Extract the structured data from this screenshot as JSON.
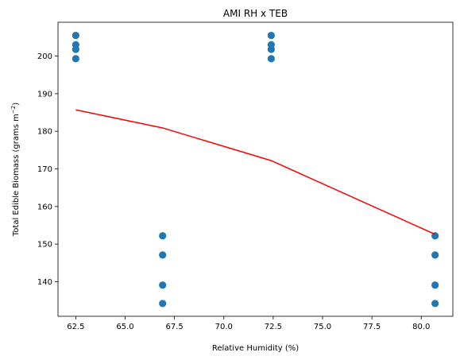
{
  "chart_data": {
    "type": "scatter",
    "title": "AMI RH x TEB",
    "xlabel": "Relative Humidity (%)",
    "ylabel": "Total Edible Biomass (grams m",
    "ylabel_sup": "−2",
    "ylabel_end": ")",
    "xlim": [
      61.6,
      81.6
    ],
    "ylim": [
      130.8,
      209.0
    ],
    "x_ticks": [
      62.5,
      65.0,
      67.5,
      70.0,
      72.5,
      75.0,
      77.5,
      80.0
    ],
    "x_tick_labels": [
      "62.5",
      "65.0",
      "67.5",
      "70.0",
      "72.5",
      "75.0",
      "77.5",
      "80.0"
    ],
    "y_ticks": [
      140,
      150,
      160,
      170,
      180,
      190,
      200
    ],
    "y_tick_labels": [
      "140",
      "150",
      "160",
      "170",
      "180",
      "190",
      "200"
    ],
    "grid": false,
    "series": [
      {
        "kind": "scatter",
        "color": "#1f77b4",
        "points": [
          [
            62.5,
            205.5
          ],
          [
            62.5,
            203.0
          ],
          [
            62.5,
            201.8
          ],
          [
            62.5,
            199.3
          ],
          [
            66.9,
            152.2
          ],
          [
            66.9,
            147.1
          ],
          [
            66.9,
            139.1
          ],
          [
            66.9,
            134.2
          ],
          [
            72.4,
            205.5
          ],
          [
            72.4,
            203.0
          ],
          [
            72.4,
            201.8
          ],
          [
            72.4,
            199.3
          ],
          [
            80.7,
            152.2
          ],
          [
            80.7,
            147.1
          ],
          [
            80.7,
            139.1
          ],
          [
            80.7,
            134.2
          ]
        ]
      },
      {
        "kind": "line",
        "color": "#ff0000",
        "points": [
          [
            62.5,
            185.7
          ],
          [
            66.9,
            180.9
          ],
          [
            72.4,
            172.2
          ],
          [
            80.7,
            152.6
          ]
        ]
      }
    ]
  }
}
